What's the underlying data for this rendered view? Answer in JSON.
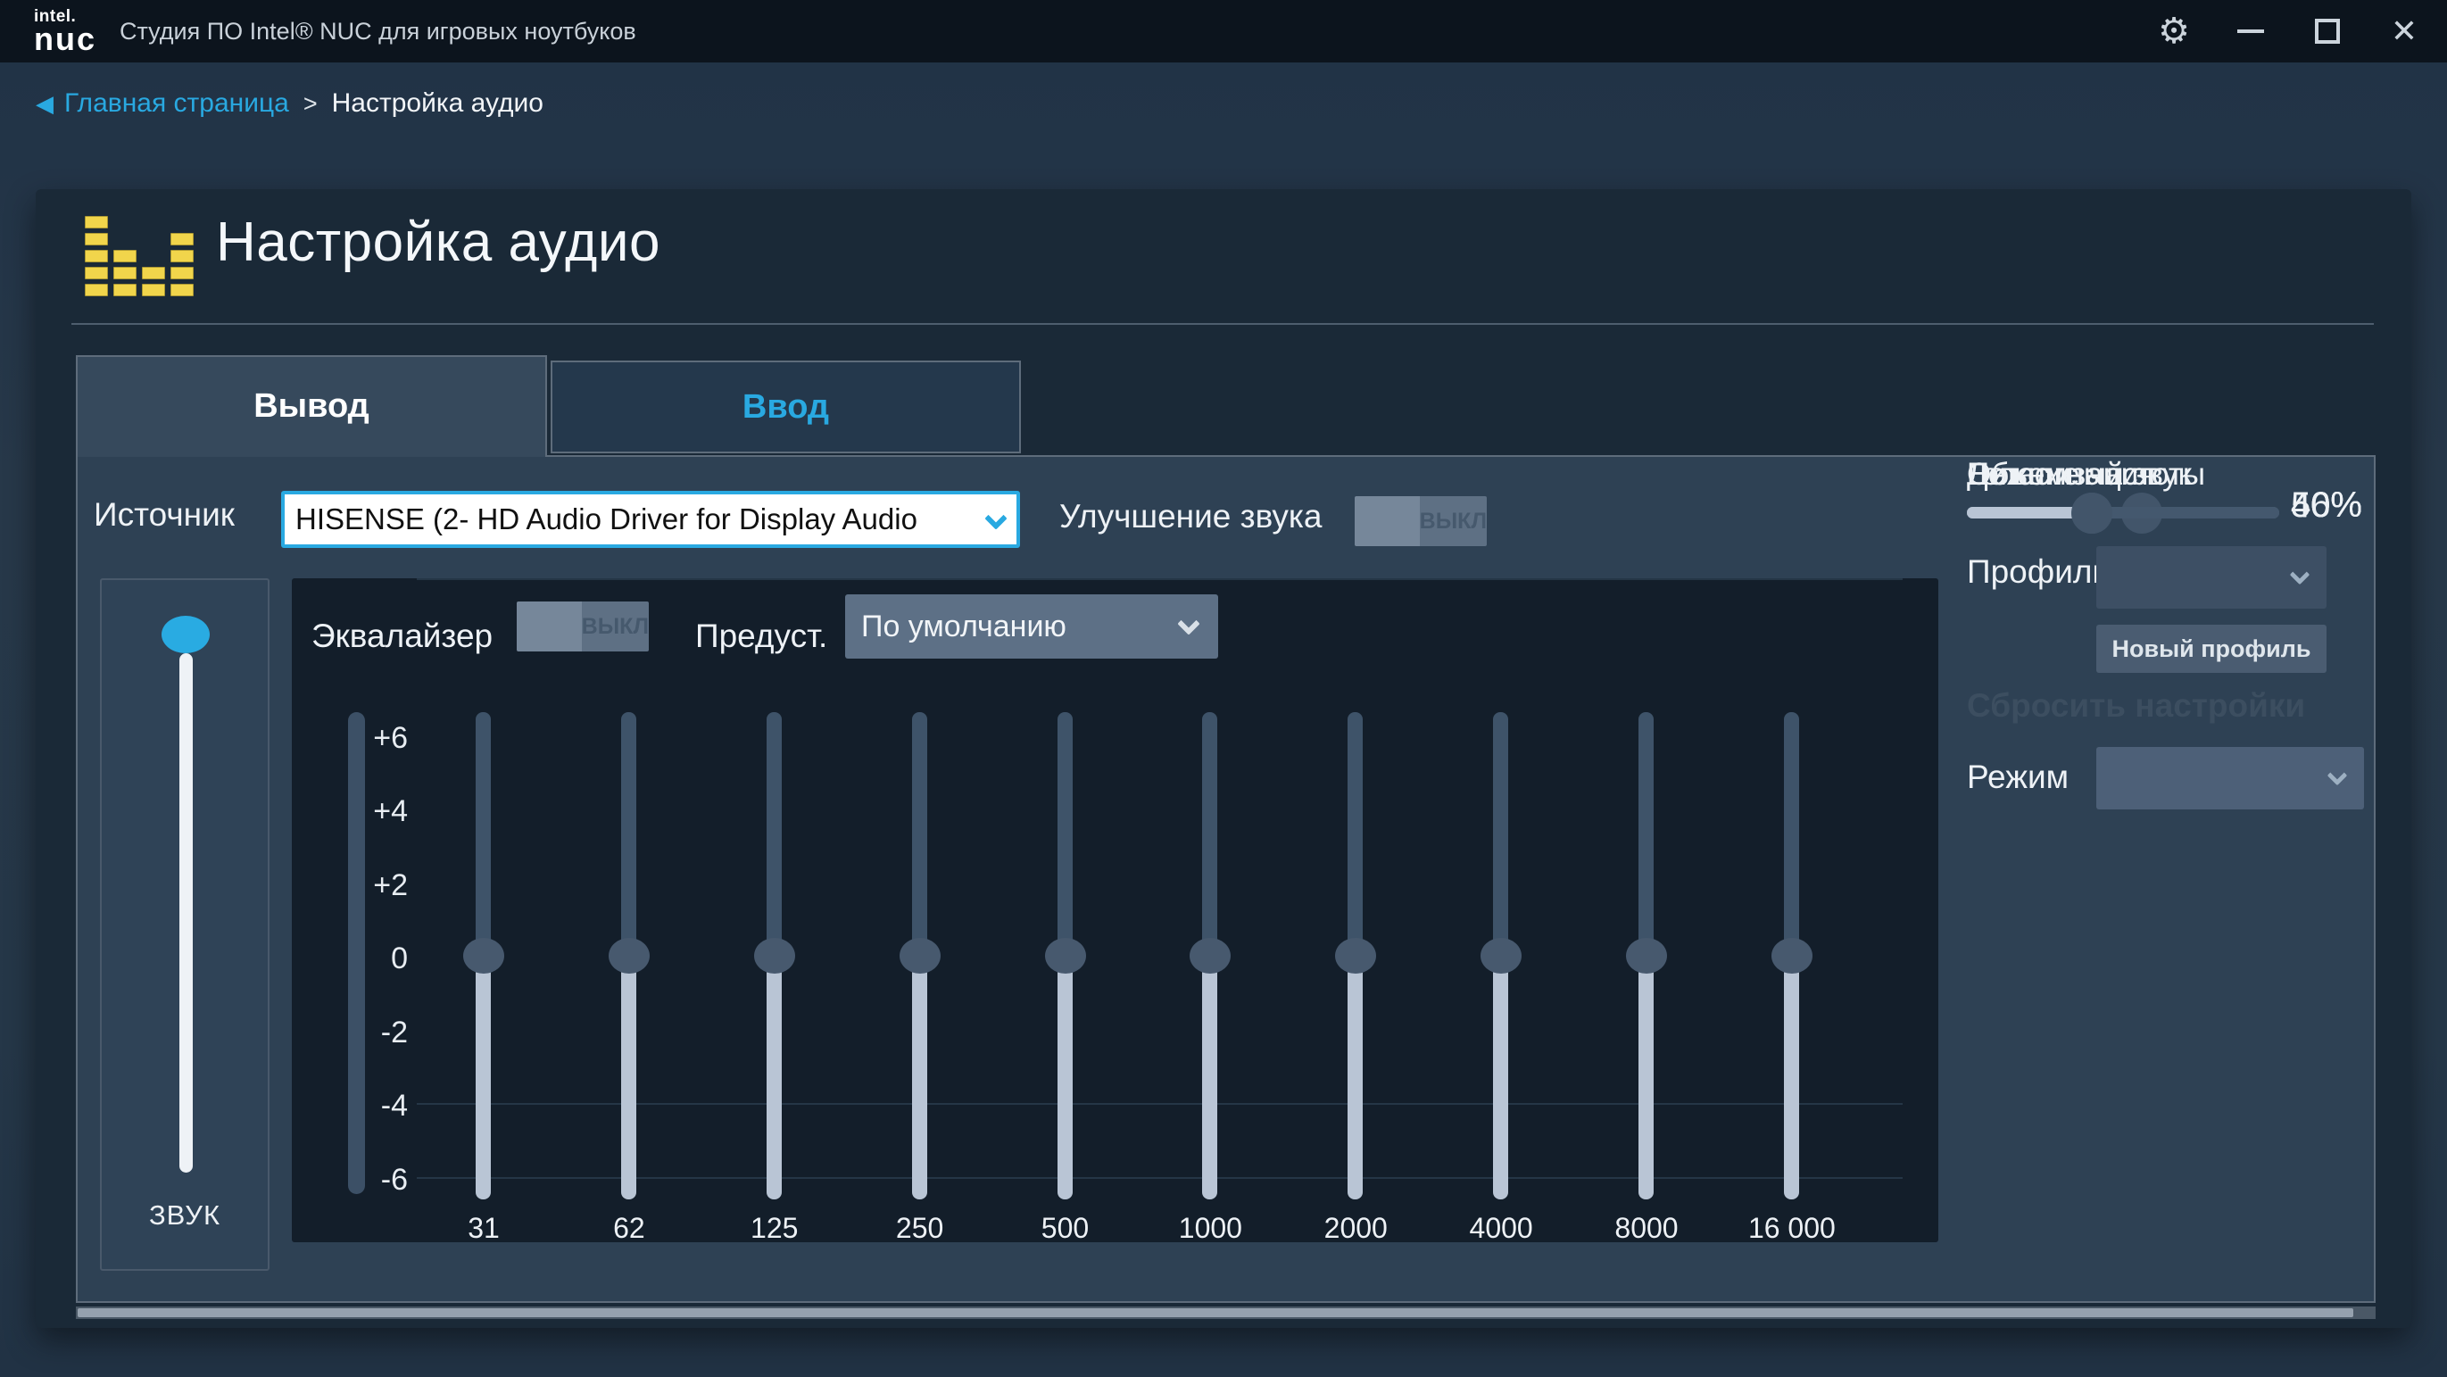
{
  "titlebar": {
    "logo_top": "intel.",
    "logo_main": "nuc",
    "app_title": "Студия ПО Intel® NUC для игровых ноутбуков"
  },
  "icons": {
    "gear": "⚙",
    "close": "✕",
    "back": "◀",
    "equalizer_icon_color": "#f1d54b"
  },
  "breadcrumb": {
    "back_label": "Главная страница",
    "separator": ">",
    "current": "Настройка аудио"
  },
  "page": {
    "title": "Настройка аудио"
  },
  "tabs": [
    {
      "label": "Вывод",
      "active": true
    },
    {
      "label": "Ввод",
      "active": false
    }
  ],
  "source": {
    "label": "Источник",
    "value": "HISENSE (2- HD Audio Driver for Display Audio",
    "enhancement_label": "Улучшение звука",
    "enhancement_state": "ВЫКЛ"
  },
  "volume": {
    "label": "ЗВУК",
    "value": 100
  },
  "equalizer": {
    "label": "Эквалайзер",
    "toggle_state": "ВЫКЛ",
    "preset_label": "Предуст.",
    "preset_value": "По умолчанию",
    "scale": [
      "+6",
      "+4",
      "+2",
      "0",
      "-2",
      "-4",
      "-6"
    ],
    "bands": [
      {
        "freq": "31",
        "value": 0
      },
      {
        "freq": "62",
        "value": 0
      },
      {
        "freq": "125",
        "value": 0
      },
      {
        "freq": "250",
        "value": 0
      },
      {
        "freq": "500",
        "value": 0
      },
      {
        "freq": "1000",
        "value": 0
      },
      {
        "freq": "2000",
        "value": 0
      },
      {
        "freq": "4000",
        "value": 0
      },
      {
        "freq": "8000",
        "value": 0
      },
      {
        "freq": "16 000",
        "value": 0
      }
    ]
  },
  "profile": {
    "label": "Профиль",
    "value": "",
    "new_profile_button": "Новый профиль",
    "reset_label": "Сбросить настройки",
    "mode_label": "Режим",
    "mode_value": ""
  },
  "effects": [
    {
      "label": "Нижние частоты",
      "value": 56,
      "display": "56%"
    },
    {
      "label": "Детализация",
      "value": 40,
      "display": "40%"
    },
    {
      "label": "Голос",
      "value": 40,
      "display": "40%"
    },
    {
      "label": "Объемный звук",
      "value": 40,
      "display": "40%"
    }
  ],
  "colors": {
    "accent": "#29a9e1",
    "titlebar_bg": "#0c141d",
    "card_bg": "#1a2937",
    "panel_bg": "#2e4154",
    "eq_bg": "#131e2a",
    "slider_fill": "#b9c5d5",
    "slider_track": "#44586e"
  }
}
